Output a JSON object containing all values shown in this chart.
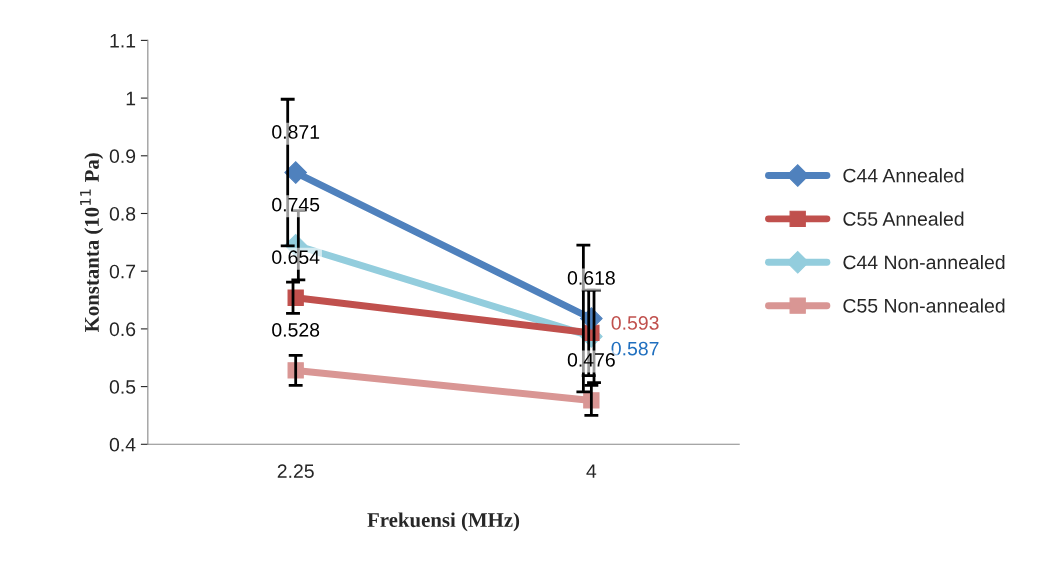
{
  "chart_data": {
    "type": "line",
    "xlabel": "Frekuensi (MHz)",
    "ylabel": "Konstanta (10$^{11}$ Pa)",
    "categories": [
      "2.25",
      "4"
    ],
    "ylim": [
      0.4,
      1.1
    ],
    "yticks": [
      0.4,
      0.5,
      0.6,
      0.7,
      0.8,
      0.9,
      {
        "value": 1,
        "label": "1"
      },
      1.1
    ],
    "grid": false,
    "legend": "right",
    "data_labels": true,
    "line_style": "solid",
    "series": [
      {
        "name": "C44 Annealed",
        "color": "#4f81bd",
        "marker": "diamond",
        "values": [
          0.871,
          0.618
        ],
        "errors": [
          0.127,
          0.127
        ]
      },
      {
        "name": "C55 Annealed",
        "color": "#c0504d",
        "marker": "square",
        "values": [
          0.654,
          0.593
        ],
        "errors": [
          0.027,
          0.074
        ]
      },
      {
        "name": "C44 Non-annealed",
        "color": "#93cddd",
        "marker": "diamond",
        "values": [
          0.745,
          0.587
        ],
        "errors": [
          0.06,
          0.08
        ]
      },
      {
        "name": "C55 Non-annealed",
        "color": "#d99694",
        "marker": "square",
        "values": [
          0.528,
          0.476
        ],
        "errors": [
          0.026,
          0.026
        ]
      }
    ]
  }
}
